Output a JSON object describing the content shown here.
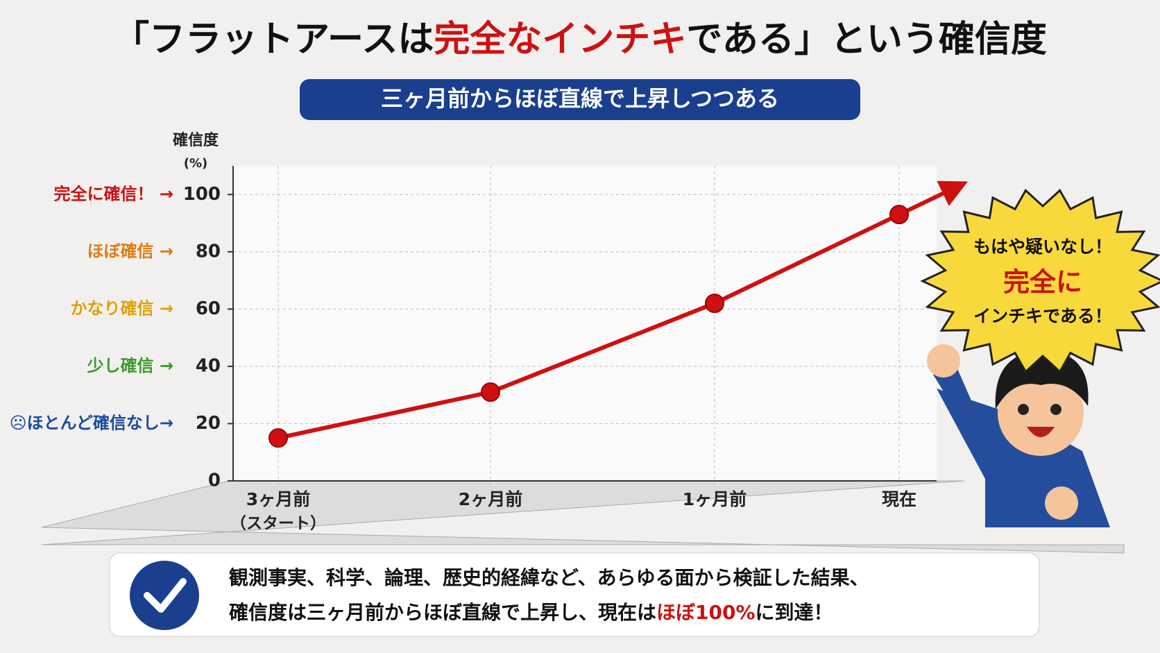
{
  "chart_data": {
    "type": "line",
    "title_parts": [
      "「フラットアースは",
      "完全なインチキ",
      "である」という確信度"
    ],
    "subtitle": "三ヶ月前からほぼ直線で上昇しつつある",
    "y_label": "確信度",
    "y_unit": "(%)",
    "categories": [
      "3ヶ月前",
      "2ヶ月前",
      "1ヶ月前",
      "現在"
    ],
    "category_note": "（スタート）",
    "values": [
      15,
      31,
      62,
      93
    ],
    "color": "#d01010",
    "ylim": [
      0,
      110
    ],
    "yticks": [
      0,
      20,
      40,
      60,
      80,
      100
    ],
    "grid": true,
    "tick_notes": [
      {
        "tick": 20,
        "text": "☹ほとんど確信なし→",
        "color": "#1a4aa0"
      },
      {
        "tick": 40,
        "text": "少し確信 →",
        "color": "#3a9a2a"
      },
      {
        "tick": 60,
        "text": "かなり確信 →",
        "color": "#e0a000"
      },
      {
        "tick": 80,
        "text": "ほぼ確信 →",
        "color": "#e07b10"
      },
      {
        "tick": 100,
        "text": "完全に確信！ →",
        "color": "#cc1111"
      }
    ],
    "bubble": [
      "もはや疑いなし！",
      "完全に",
      "インチキである！"
    ],
    "conclusion": {
      "line1": "観測事実、科学、論理、歴史的経緯など、あらゆる面から検証した結果、",
      "line2_parts": [
        "確信度は三ヶ月前からほぼ直線で上昇し、現在は",
        "ほぼ100%",
        "に到達！"
      ]
    }
  }
}
